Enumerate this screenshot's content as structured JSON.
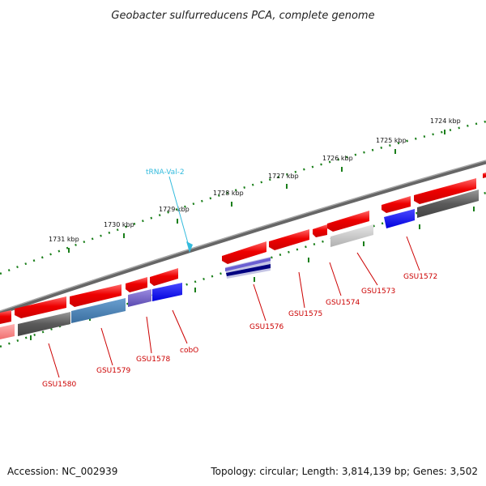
{
  "title": "Geobacter sulfurreducens PCA, complete genome",
  "footer": {
    "accession": "Accession: NC_002939",
    "summary": "Topology: circular; Length: 3,814,139 bp; Genes: 3,502"
  },
  "kbp_labels": [
    "1724 kbp",
    "1725 kbp",
    "1726 kbp",
    "1727 kbp",
    "1728 kbp",
    "1729 kbp",
    "1730 kbp",
    "1731 kbp"
  ],
  "gene_labels": [
    "GSU1572",
    "GSU1573",
    "GSU1574",
    "GSU1575",
    "GSU1576",
    "cobO",
    "GSU1578",
    "GSU1579",
    "GSU1580"
  ],
  "trna_label": "tRNA-Val-2",
  "colors": {
    "backbone": "#7a7a7a",
    "tick": "#1a7f1a",
    "gene_red": "#ee1111",
    "label_red": "#cc0000",
    "trna": "#33bbdd"
  }
}
